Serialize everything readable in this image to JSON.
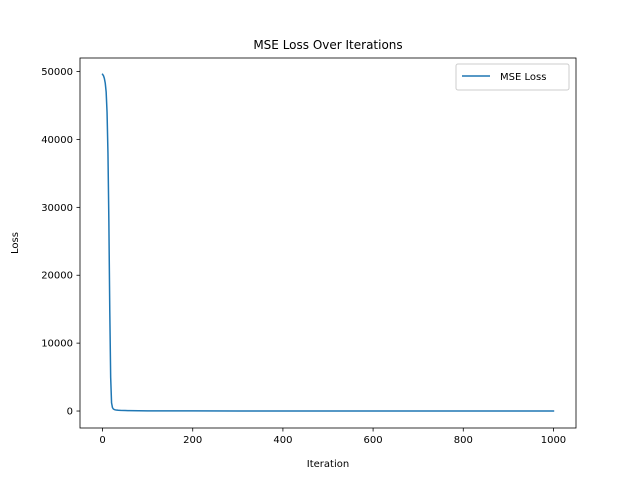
{
  "chart_data": {
    "type": "line",
    "title": "MSE Loss Over Iterations",
    "xlabel": "Iteration",
    "ylabel": "Loss",
    "xlim": [
      -50,
      1050
    ],
    "ylim": [
      -2500,
      52000
    ],
    "xticks": [
      0,
      200,
      400,
      600,
      800,
      1000
    ],
    "yticks": [
      0,
      10000,
      20000,
      30000,
      40000,
      50000
    ],
    "grid": false,
    "legend_position": "top-right",
    "series": [
      {
        "name": "MSE Loss",
        "color": "#1f77b4",
        "x": [
          0,
          2,
          4,
          6,
          8,
          10,
          12,
          14,
          16,
          18,
          20,
          22,
          24,
          26,
          28,
          30,
          35,
          40,
          50,
          60,
          80,
          100,
          150,
          200,
          300,
          400,
          500,
          600,
          700,
          800,
          900,
          1000
        ],
        "y": [
          49600,
          49400,
          49000,
          48300,
          47000,
          44000,
          38000,
          28000,
          15000,
          5000,
          1200,
          500,
          300,
          220,
          180,
          150,
          110,
          90,
          70,
          55,
          40,
          30,
          20,
          15,
          10,
          8,
          6,
          5,
          4,
          4,
          3,
          3
        ]
      }
    ]
  }
}
